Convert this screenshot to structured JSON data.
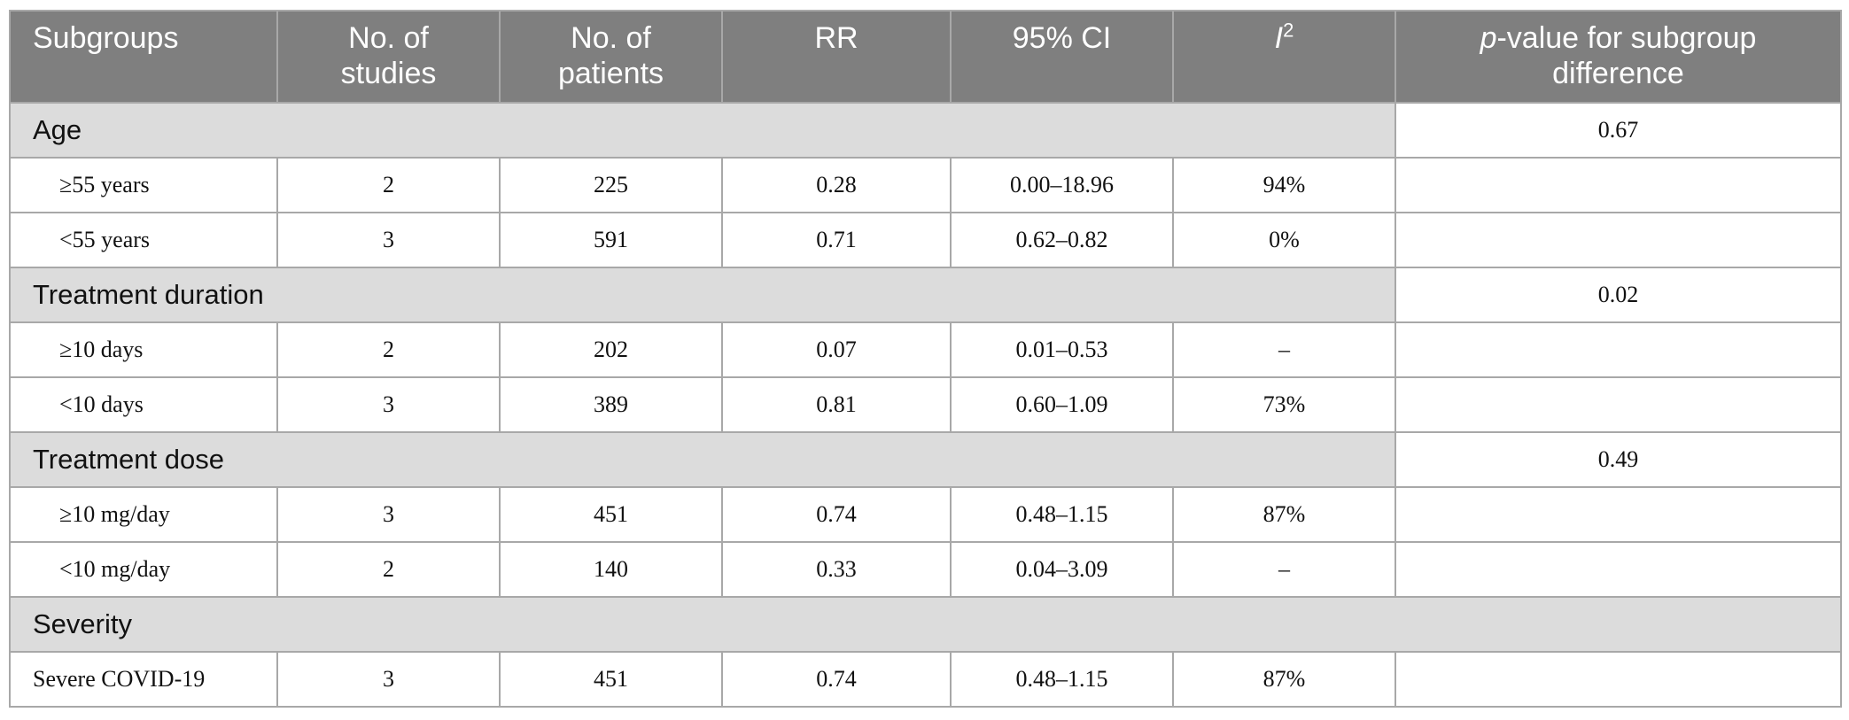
{
  "headers": {
    "subgroups": "Subgroups",
    "studies_line1": "No. of",
    "studies_line2": "studies",
    "patients_line1": "No. of",
    "patients_line2": "patients",
    "rr": "RR",
    "ci": "95% CI",
    "i2_letter": "I",
    "i2_sup": "2",
    "pval_italic": "p",
    "pval_line1_rest": "-value for subgroup",
    "pval_line2": "difference"
  },
  "groups": [
    {
      "label": "Age",
      "p_value": "0.67",
      "rows": [
        {
          "label": "≥55 years",
          "studies": "2",
          "patients": "225",
          "rr": "0.28",
          "ci": "0.00–18.96",
          "i2": "94%"
        },
        {
          "label": "<55 years",
          "studies": "3",
          "patients": "591",
          "rr": "0.71",
          "ci": "0.62–0.82",
          "i2": "0%"
        }
      ]
    },
    {
      "label": "Treatment duration",
      "p_value": "0.02",
      "rows": [
        {
          "label": "≥10 days",
          "studies": "2",
          "patients": "202",
          "rr": "0.07",
          "ci": "0.01–0.53",
          "i2": "–"
        },
        {
          "label": "<10 days",
          "studies": "3",
          "patients": "389",
          "rr": "0.81",
          "ci": "0.60–1.09",
          "i2": "73%"
        }
      ]
    },
    {
      "label": "Treatment dose",
      "p_value": "0.49",
      "rows": [
        {
          "label": "≥10 mg/day",
          "studies": "3",
          "patients": "451",
          "rr": "0.74",
          "ci": "0.48–1.15",
          "i2": "87%"
        },
        {
          "label": "<10 mg/day",
          "studies": "2",
          "patients": "140",
          "rr": "0.33",
          "ci": "0.04–3.09",
          "i2": "–"
        }
      ]
    },
    {
      "label": "Severity",
      "p_value": "",
      "rows": [
        {
          "label": "Severe COVID-19",
          "studies": "3",
          "patients": "451",
          "rr": "0.74",
          "ci": "0.48–1.15",
          "i2": "87%"
        }
      ]
    }
  ]
}
